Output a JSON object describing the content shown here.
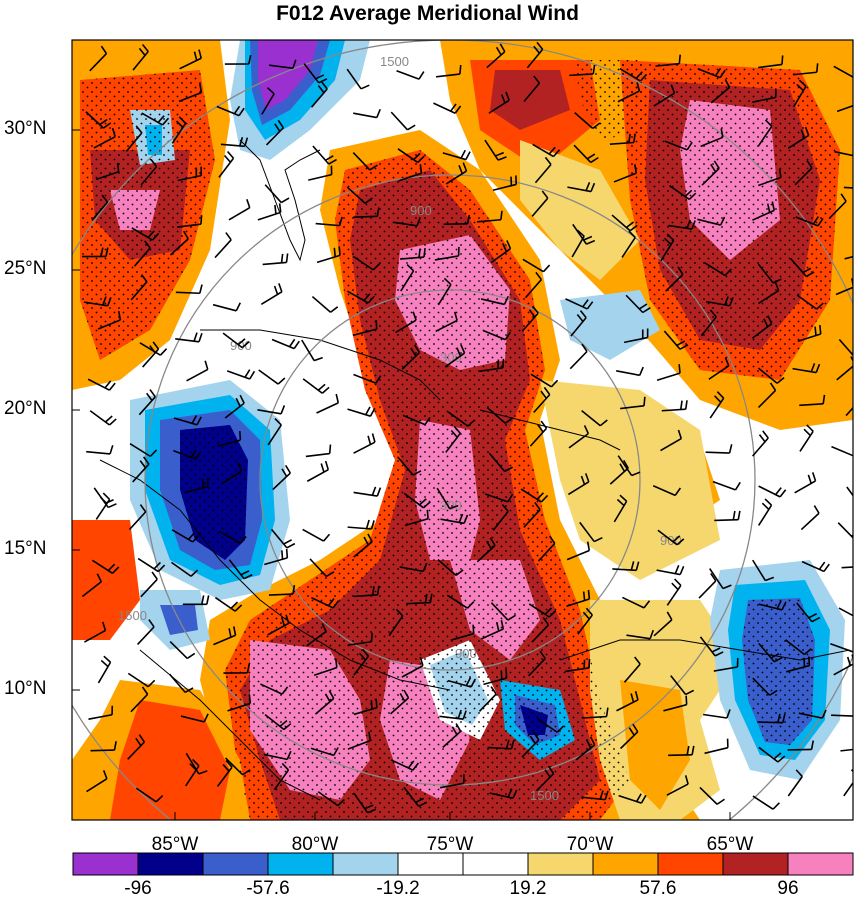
{
  "title": "F012 Average Meridional Wind",
  "lat_labels": [
    "30°N",
    "25°N",
    "20°N",
    "15°N",
    "10°N"
  ],
  "lon_labels": [
    "85°W",
    "80°W",
    "75°W",
    "70°W",
    "65°W"
  ],
  "range_ring_labels": [
    "300",
    "900",
    "1500"
  ],
  "colorbar": {
    "colors": [
      "#9b30d0",
      "#00008b",
      "#3a5fcd",
      "#00b2ee",
      "#a4d3ee",
      "#ffffff",
      "#ffffff",
      "#f5d76e",
      "#ffa500",
      "#ff4500",
      "#b22222",
      "#f781bf"
    ],
    "labels": [
      "-96",
      "-57.6",
      "-19.2",
      "19.2",
      "57.6",
      "96"
    ]
  }
}
